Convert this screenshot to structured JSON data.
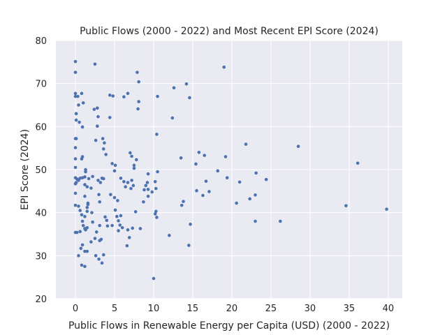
{
  "chart_data": {
    "type": "scatter",
    "title": "Public Flows (2000 - 2022) and Most Recent EPI Score (2024)",
    "xlabel": "Public Flows in Renewable Energy per Capita (USD) (2000 - 2022)",
    "ylabel": "EPI Score (2024)",
    "xlim": [
      -2.5,
      41.8
    ],
    "ylim": [
      20,
      80
    ],
    "xticks": [
      0,
      5,
      10,
      15,
      20,
      25,
      30,
      35,
      40
    ],
    "yticks": [
      20,
      30,
      40,
      50,
      60,
      70,
      80
    ],
    "grid": true,
    "background": "#eaeaf2",
    "point_color": "#4c72b0",
    "points": [
      [
        0.0,
        75.1
      ],
      [
        0.0,
        72.6
      ],
      [
        0.0,
        72.6
      ],
      [
        0.0,
        67.7
      ],
      [
        0.0,
        67.0
      ],
      [
        0.3,
        67.0
      ],
      [
        0.8,
        67.7
      ],
      [
        0.4,
        65.0
      ],
      [
        1.0,
        65.5
      ],
      [
        0.1,
        63.0
      ],
      [
        0.1,
        61.5
      ],
      [
        0.5,
        61.0
      ],
      [
        0.9,
        59.9
      ],
      [
        0.0,
        57.2
      ],
      [
        0.1,
        57.2
      ],
      [
        0.0,
        55.1
      ],
      [
        0.0,
        52.5
      ],
      [
        0.0,
        50.5
      ],
      [
        0.0,
        48.1
      ],
      [
        0.2,
        47.8
      ],
      [
        0.4,
        47.5
      ],
      [
        0.1,
        47.0
      ],
      [
        0.0,
        46.7
      ],
      [
        0.6,
        48.0
      ],
      [
        0.9,
        48.1
      ],
      [
        1.2,
        48.3
      ],
      [
        1.3,
        49.5
      ],
      [
        1.3,
        50.0
      ],
      [
        0.8,
        52.5
      ],
      [
        0.9,
        53.0
      ],
      [
        1.2,
        46.5
      ],
      [
        1.5,
        46.0
      ],
      [
        1.7,
        47.9
      ],
      [
        2.0,
        45.7
      ],
      [
        2.2,
        48.4
      ],
      [
        0.0,
        44.5
      ],
      [
        0.0,
        41.7
      ],
      [
        0.4,
        41.5
      ],
      [
        0.6,
        40.5
      ],
      [
        1.2,
        43.8
      ],
      [
        1.6,
        41.9
      ],
      [
        1.6,
        42.2
      ],
      [
        1.5,
        41.2
      ],
      [
        0.8,
        39.5
      ],
      [
        1.2,
        39.1
      ],
      [
        0.9,
        38.0
      ],
      [
        1.5,
        40.3
      ],
      [
        2.1,
        40.0
      ],
      [
        0.0,
        35.4
      ],
      [
        0.2,
        35.4
      ],
      [
        0.6,
        35.6
      ],
      [
        1.0,
        37.0
      ],
      [
        1.3,
        36.0
      ],
      [
        1.5,
        36.5
      ],
      [
        1.2,
        36.3
      ],
      [
        2.2,
        37.8
      ],
      [
        0.9,
        32.5
      ],
      [
        0.7,
        31.7
      ],
      [
        1.2,
        31.0
      ],
      [
        1.5,
        31.0
      ],
      [
        0.4,
        30.0
      ],
      [
        0.8,
        27.8
      ],
      [
        1.2,
        27.5
      ],
      [
        2.0,
        33.2
      ],
      [
        2.5,
        34.0
      ],
      [
        2.7,
        35.5
      ],
      [
        2.6,
        30.0
      ],
      [
        3.0,
        29.2
      ],
      [
        3.3,
        33.8
      ],
      [
        3.1,
        33.5
      ],
      [
        3.4,
        28.3
      ],
      [
        3.6,
        30.2
      ],
      [
        3.1,
        37.0
      ],
      [
        3.8,
        39.0
      ],
      [
        4.0,
        38.2
      ],
      [
        4.1,
        36.9
      ],
      [
        4.7,
        37.0
      ],
      [
        2.4,
        64.0
      ],
      [
        2.8,
        64.3
      ],
      [
        2.6,
        56.8
      ],
      [
        2.8,
        60.1
      ],
      [
        2.5,
        74.5
      ],
      [
        2.9,
        62.3
      ],
      [
        3.1,
        42.5
      ],
      [
        3.0,
        44.2
      ],
      [
        2.9,
        47.5
      ],
      [
        3.2,
        47.0
      ],
      [
        3.4,
        48.0
      ],
      [
        3.6,
        47.9
      ],
      [
        3.7,
        56.2
      ],
      [
        3.5,
        57.2
      ],
      [
        3.6,
        54.8
      ],
      [
        3.9,
        53.5
      ],
      [
        4.4,
        67.3
      ],
      [
        4.4,
        62.1
      ],
      [
        4.8,
        67.1
      ],
      [
        4.7,
        51.4
      ],
      [
        5.1,
        51.0
      ],
      [
        5.0,
        49.7
      ],
      [
        4.5,
        44.2
      ],
      [
        5.0,
        43.5
      ],
      [
        5.4,
        42.8
      ],
      [
        5.1,
        40.6
      ],
      [
        5.3,
        39.1
      ],
      [
        5.5,
        38.1
      ],
      [
        5.5,
        35.8
      ],
      [
        5.8,
        39.3
      ],
      [
        5.7,
        37.1
      ],
      [
        6.0,
        36.5
      ],
      [
        5.8,
        48.0
      ],
      [
        6.2,
        47.2
      ],
      [
        6.4,
        46.0
      ],
      [
        6.7,
        67.7
      ],
      [
        6.2,
        66.9
      ],
      [
        6.7,
        47.0
      ],
      [
        6.7,
        36.0
      ],
      [
        6.6,
        32.3
      ],
      [
        6.9,
        34.2
      ],
      [
        7.1,
        45.6
      ],
      [
        7.3,
        36.4
      ],
      [
        7.4,
        46.3
      ],
      [
        7.2,
        47.5
      ],
      [
        7.0,
        53.9
      ],
      [
        7.2,
        53.1
      ],
      [
        7.8,
        52.3
      ],
      [
        7.5,
        51.0
      ],
      [
        7.5,
        50.3
      ],
      [
        7.7,
        40.2
      ],
      [
        7.9,
        72.6
      ],
      [
        8.1,
        70.4
      ],
      [
        8.1,
        65.8
      ],
      [
        8.0,
        64.1
      ],
      [
        8.3,
        36.3
      ],
      [
        8.7,
        42.5
      ],
      [
        8.8,
        45.3
      ],
      [
        9.0,
        46.3
      ],
      [
        9.2,
        47.0
      ],
      [
        9.3,
        49.0
      ],
      [
        9.3,
        45.4
      ],
      [
        9.3,
        43.8
      ],
      [
        9.8,
        44.8
      ],
      [
        10.2,
        47.2
      ],
      [
        10.3,
        45.6
      ],
      [
        10.2,
        39.7
      ],
      [
        10.3,
        40.3
      ],
      [
        10.4,
        38.9
      ],
      [
        10.5,
        49.5
      ],
      [
        10.4,
        58.2
      ],
      [
        10.5,
        67.0
      ],
      [
        10.0,
        24.7
      ],
      [
        12.0,
        34.7
      ],
      [
        12.4,
        62.0
      ],
      [
        12.6,
        69.0
      ],
      [
        13.5,
        52.7
      ],
      [
        13.6,
        41.7
      ],
      [
        13.8,
        42.6
      ],
      [
        14.2,
        69.9
      ],
      [
        14.5,
        32.4
      ],
      [
        14.6,
        66.7
      ],
      [
        14.7,
        37.3
      ],
      [
        15.4,
        51.3
      ],
      [
        15.5,
        45.1
      ],
      [
        15.8,
        54.0
      ],
      [
        16.3,
        44.0
      ],
      [
        16.5,
        53.3
      ],
      [
        16.7,
        47.3
      ],
      [
        17.1,
        44.9
      ],
      [
        18.2,
        49.7
      ],
      [
        19.0,
        73.8
      ],
      [
        19.2,
        53.0
      ],
      [
        19.4,
        48.1
      ],
      [
        20.6,
        42.2
      ],
      [
        21.0,
        47.1
      ],
      [
        21.8,
        55.9
      ],
      [
        22.3,
        43.2
      ],
      [
        23.0,
        38.0
      ],
      [
        23.0,
        44.1
      ],
      [
        23.1,
        49.2
      ],
      [
        24.4,
        47.7
      ],
      [
        26.2,
        38.0
      ],
      [
        28.5,
        55.4
      ],
      [
        34.6,
        41.6
      ],
      [
        36.1,
        51.5
      ],
      [
        39.8,
        40.8
      ]
    ]
  }
}
